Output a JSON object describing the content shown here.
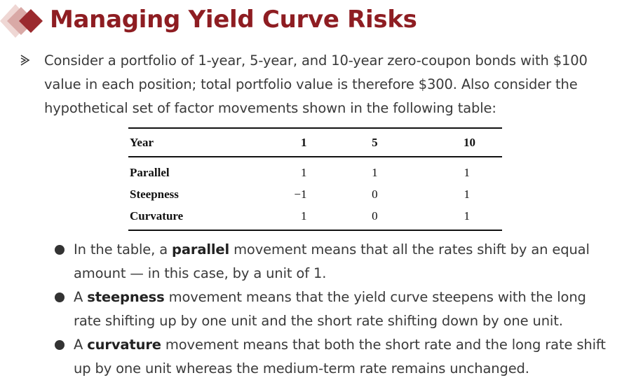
{
  "title": "Managing Yield Curve Risks",
  "intro": {
    "text": "Consider a portfolio of 1-year, 5-year, and 10-year zero-coupon bonds with $100 value in each position; total portfolio value is therefore $300. Also consider the hypothetical set of factor movements shown in the following table:"
  },
  "table": {
    "headers": [
      "Year",
      "1",
      "5",
      "10"
    ],
    "rows": [
      {
        "label": "Parallel",
        "values": [
          "1",
          "1",
          "1"
        ]
      },
      {
        "label": "Steepness",
        "values": [
          "−1",
          "0",
          "1"
        ]
      },
      {
        "label": "Curvature",
        "values": [
          "1",
          "0",
          "1"
        ]
      }
    ]
  },
  "bullets": [
    {
      "before": "In the table, a ",
      "bold": "parallel",
      "after": " movement means that all the rates shift by an equal amount — in this case, by a unit of 1."
    },
    {
      "before": "A ",
      "bold": "steepness",
      "after": " movement means that the yield curve steepens with the long rate shifting up by one unit and the short rate shifting down by one unit."
    },
    {
      "before": "A ",
      "bold": "curvature",
      "after": " movement means that both the short rate and the long rate shift up by one unit whereas the medium-term rate remains unchanged."
    }
  ],
  "colors": {
    "title": "#8e1d22",
    "diamond_dark": "#9b2a2e",
    "diamond_light": "#d9a9a6"
  },
  "icons": {
    "logo": "double-diamond-icon",
    "intro_bullet": "arrow-bullet-icon",
    "list_bullet": "dot-bullet-icon"
  }
}
